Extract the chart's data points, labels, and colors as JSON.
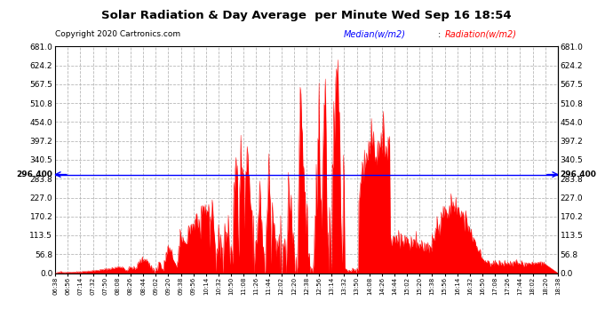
{
  "title": "Solar Radiation & Day Average  per Minute Wed Sep 16 18:54",
  "copyright": "Copyright 2020 Cartronics.com",
  "median_label": "Median(w/m2)",
  "radiation_label": "Radiation(w/m2)",
  "median_value": 296.4,
  "y_ticks": [
    0.0,
    56.8,
    113.5,
    170.2,
    227.0,
    283.8,
    340.5,
    397.2,
    454.0,
    510.8,
    567.5,
    624.2,
    681.0
  ],
  "y_min": 0.0,
  "y_max": 681.0,
  "bg_color": "#ffffff",
  "fill_color": "#ff0000",
  "line_color": "#ff0000",
  "median_line_color": "#0000ff",
  "grid_color": "#b0b0b0",
  "x_tick_labels": [
    "06:38",
    "06:56",
    "07:14",
    "07:32",
    "07:50",
    "08:08",
    "08:26",
    "08:44",
    "09:02",
    "09:20",
    "09:38",
    "09:56",
    "10:14",
    "10:32",
    "10:50",
    "11:08",
    "11:26",
    "11:44",
    "12:02",
    "12:20",
    "12:38",
    "12:56",
    "13:14",
    "13:32",
    "13:50",
    "14:08",
    "14:26",
    "14:44",
    "15:02",
    "15:20",
    "15:38",
    "15:56",
    "16:14",
    "16:32",
    "16:50",
    "17:08",
    "17:26",
    "17:44",
    "18:02",
    "18:20",
    "18:38"
  ],
  "median_annotation": "296.400"
}
